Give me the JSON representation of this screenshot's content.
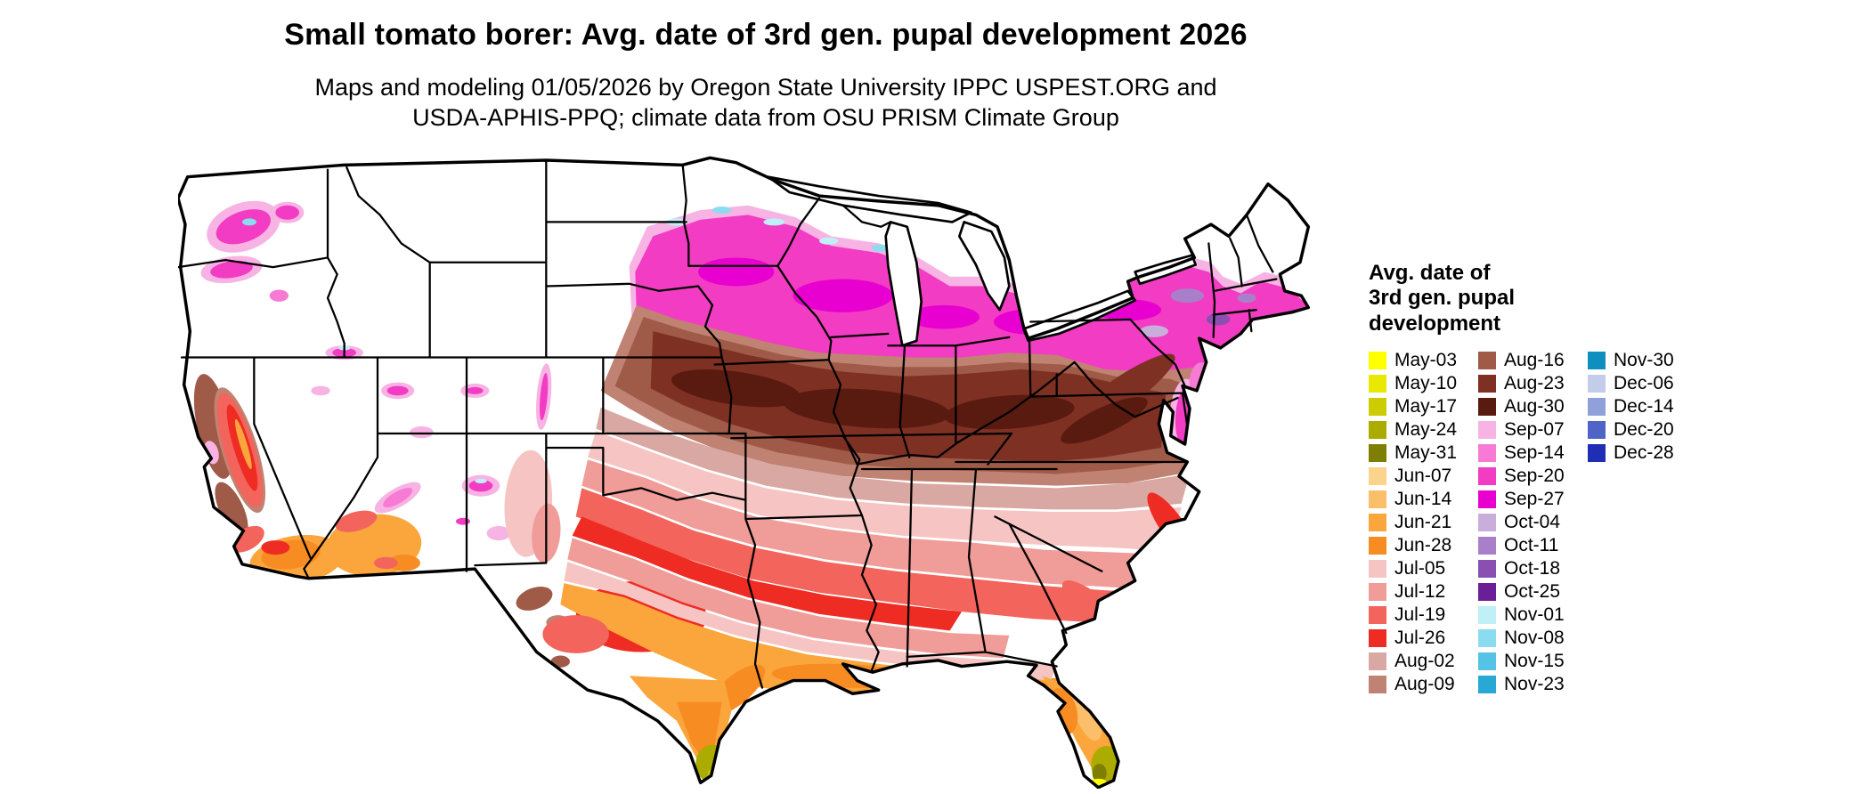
{
  "page": {
    "background": "#ffffff"
  },
  "header": {
    "title": "Small tomato borer: Avg. date of 3rd gen. pupal development 2026",
    "subtitle_line1": "Maps and modeling 01/05/2026 by Oregon State University IPPC USPEST.ORG and",
    "subtitle_line2": "USDA-APHIS-PPQ; climate data from OSU PRISM Climate Group"
  },
  "map": {
    "description": "Contiguous United States choropleth map of average date of 3rd generation pupal development",
    "no_data_color": "#ffffff",
    "border_color": "#000000"
  },
  "legend": {
    "title_line1": "Avg. date of",
    "title_line2": "3rd gen. pupal",
    "title_line3": "development",
    "columns": [
      [
        {
          "label": "May-03",
          "color": "#FFFF00"
        },
        {
          "label": "May-10",
          "color": "#E8E800"
        },
        {
          "label": "May-17",
          "color": "#CCCC00"
        },
        {
          "label": "May-24",
          "color": "#ABAB00"
        },
        {
          "label": "May-31",
          "color": "#7E7E00"
        },
        {
          "label": "Jun-07",
          "color": "#FBD38C"
        },
        {
          "label": "Jun-14",
          "color": "#FBBE6A"
        },
        {
          "label": "Jun-21",
          "color": "#FAA63C"
        },
        {
          "label": "Jun-28",
          "color": "#F78C22"
        },
        {
          "label": "Jul-05",
          "color": "#F6C5C3"
        },
        {
          "label": "Jul-12",
          "color": "#F09C98"
        },
        {
          "label": "Jul-19",
          "color": "#F2645C"
        },
        {
          "label": "Jul-26",
          "color": "#EF2C24"
        },
        {
          "label": "Aug-02",
          "color": "#D9A8A3"
        },
        {
          "label": "Aug-09",
          "color": "#C08272"
        }
      ],
      [
        {
          "label": "Aug-16",
          "color": "#A05A48"
        },
        {
          "label": "Aug-23",
          "color": "#7E3023"
        },
        {
          "label": "Aug-30",
          "color": "#591A10"
        },
        {
          "label": "Sep-07",
          "color": "#F7B3E3"
        },
        {
          "label": "Sep-14",
          "color": "#F77BD4"
        },
        {
          "label": "Sep-20",
          "color": "#F23CC3"
        },
        {
          "label": "Sep-27",
          "color": "#E800D0"
        },
        {
          "label": "Oct-04",
          "color": "#C9AEDC"
        },
        {
          "label": "Oct-11",
          "color": "#A97FC9"
        },
        {
          "label": "Oct-18",
          "color": "#8A4FB0"
        },
        {
          "label": "Oct-25",
          "color": "#6A1F96"
        },
        {
          "label": "Nov-01",
          "color": "#BFEFF7"
        },
        {
          "label": "Nov-08",
          "color": "#8BDCEF"
        },
        {
          "label": "Nov-15",
          "color": "#55C4E4"
        },
        {
          "label": "Nov-23",
          "color": "#28A8D4"
        }
      ],
      [
        {
          "label": "Nov-30",
          "color": "#0E8FC0"
        },
        {
          "label": "Dec-06",
          "color": "#C3CDEA"
        },
        {
          "label": "Dec-14",
          "color": "#8FA0DB"
        },
        {
          "label": "Dec-20",
          "color": "#5064C8"
        },
        {
          "label": "Dec-28",
          "color": "#1F2EB4"
        }
      ]
    ]
  }
}
